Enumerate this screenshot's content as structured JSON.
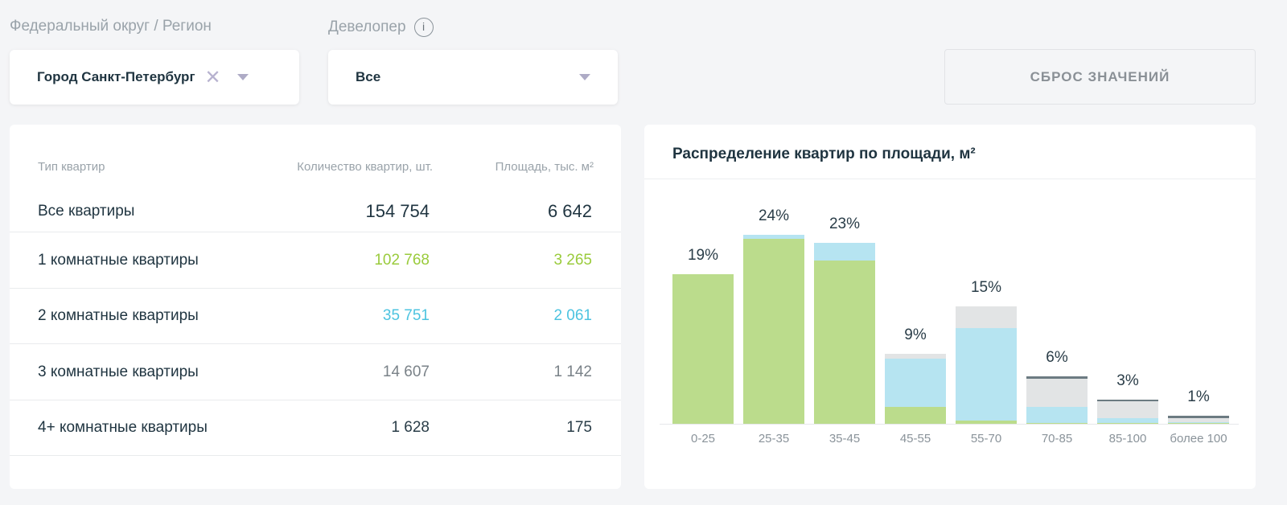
{
  "filters": {
    "region_label": "Федеральный округ / Регион",
    "region_value": "Город Санкт-Петербург",
    "developer_label": "Девелопер",
    "developer_info": "i",
    "developer_value": "Все",
    "reset_label": "СБРОС ЗНАЧЕНИЙ"
  },
  "table": {
    "headers": [
      "Тип квартир",
      "Количество квартир, шт.",
      "Площадь, тыс. м²"
    ],
    "rows": [
      {
        "name": "Все квартиры",
        "count": "154 754",
        "area": "6 642",
        "color": "#1f3440"
      },
      {
        "name": "1 комнатные квартиры",
        "count": "102 768",
        "area": "3 265",
        "color": "#9acb3c"
      },
      {
        "name": "2 комнатные квартиры",
        "count": "35 751",
        "area": "2 061",
        "color": "#4cc3e0"
      },
      {
        "name": "3 комнатные квартиры",
        "count": "14 607",
        "area": "1 142",
        "color": "#7a8288"
      },
      {
        "name": "4+ комнатные квартиры",
        "count": "1 628",
        "area": "175",
        "color": "#2a3d48"
      }
    ]
  },
  "chart_data": {
    "type": "bar",
    "stacked": true,
    "title": "Распределение квартир по площади, м²",
    "categories": [
      "0-25",
      "25-35",
      "35-45",
      "45-55",
      "55-70",
      "70-85",
      "85-100",
      "более 100"
    ],
    "labels": [
      "19%",
      "24%",
      "23%",
      "9%",
      "15%",
      "6%",
      "3%",
      "1%"
    ],
    "ylim": [
      0,
      24
    ],
    "series": [
      {
        "name": "1 комнатные",
        "color": "#bbdc8c",
        "values": [
          19,
          23.5,
          20.7,
          2.1,
          0.4,
          0.1,
          0.1,
          0.1
        ]
      },
      {
        "name": "2 комнатные",
        "color": "#b6e4f1",
        "values": [
          0,
          0.5,
          2.3,
          6.2,
          11.8,
          2.0,
          0.6,
          0.1
        ]
      },
      {
        "name": "3 комнатные",
        "color": "#e2e4e5",
        "values": [
          0,
          0,
          0,
          0.6,
          2.7,
          3.6,
          2.2,
          0.5
        ]
      },
      {
        "name": "4+ комнатные",
        "color": "#6c7b82",
        "values": [
          0,
          0,
          0,
          0,
          0,
          0.3,
          0.2,
          0.3
        ]
      }
    ]
  }
}
